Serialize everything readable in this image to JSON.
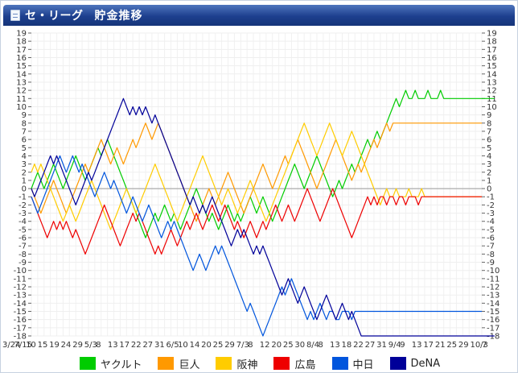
{
  "header": {
    "title": "セ・リーグ",
    "subtitle": "貯金推移"
  },
  "chart_data": {
    "type": "line",
    "ylim": [
      -18,
      19
    ],
    "y_ticks": [
      "19",
      "18",
      "17",
      "16",
      "15",
      "14",
      "13",
      "12",
      "11",
      "10",
      "9",
      "8",
      "7",
      "6",
      "5",
      "4",
      "3",
      "2",
      "1",
      "0",
      "-1",
      "-2",
      "-3",
      "-4",
      "-5",
      "-6",
      "-7",
      "-8",
      "-9",
      "-10",
      "-11",
      "-12",
      "-13",
      "-14",
      "-15",
      "-16",
      "-17",
      "-18"
    ],
    "x_tick_labels": [
      "3/24",
      "7/15",
      "10",
      "15",
      "19",
      "24",
      "29",
      "5/3",
      "8",
      "13",
      "17",
      "22",
      "27",
      "31",
      "6/5",
      "10",
      "14",
      "20",
      "25",
      "29",
      "7/3",
      "8",
      "12",
      "20",
      "25",
      "30",
      "8/4",
      "8",
      "13",
      "18",
      "22",
      "27",
      "31",
      "9/4",
      "9",
      "13",
      "17",
      "21",
      "25",
      "29",
      "10/3",
      "7"
    ],
    "x_count": 143,
    "zero_line": true,
    "grid": true,
    "series": [
      {
        "name": "ヤクルト",
        "color": "#00cc00",
        "values": [
          0,
          1,
          2,
          1,
          0,
          1,
          2,
          3,
          2,
          1,
          0,
          1,
          2,
          3,
          4,
          3,
          2,
          1,
          2,
          3,
          4,
          5,
          4,
          5,
          6,
          5,
          4,
          3,
          2,
          1,
          0,
          -1,
          -2,
          -3,
          -4,
          -5,
          -6,
          -5,
          -4,
          -3,
          -4,
          -3,
          -2,
          -3,
          -4,
          -3,
          -4,
          -5,
          -4,
          -3,
          -2,
          -1,
          0,
          -1,
          -2,
          -3,
          -4,
          -3,
          -4,
          -5,
          -4,
          -3,
          -2,
          -3,
          -4,
          -3,
          -4,
          -3,
          -2,
          -1,
          -2,
          -3,
          -2,
          -1,
          -2,
          -3,
          -4,
          -3,
          -2,
          -1,
          0,
          1,
          2,
          3,
          2,
          1,
          0,
          1,
          2,
          3,
          4,
          3,
          2,
          1,
          0,
          -1,
          0,
          1,
          0,
          1,
          2,
          3,
          2,
          3,
          4,
          5,
          6,
          5,
          6,
          7,
          6,
          7,
          8,
          9,
          10,
          11,
          10,
          11,
          12,
          11,
          11,
          12,
          11,
          11,
          11,
          12,
          11,
          11,
          11,
          12,
          11,
          11,
          11,
          11,
          11,
          11,
          11,
          11,
          11,
          11,
          11,
          11,
          11,
          11,
          11,
          11,
          11
        ]
      },
      {
        "name": "巨人",
        "color": "#ff9900",
        "values": [
          0,
          -1,
          -2,
          -3,
          -2,
          -1,
          0,
          1,
          0,
          -1,
          -2,
          -3,
          -2,
          -1,
          0,
          1,
          2,
          3,
          2,
          3,
          4,
          5,
          6,
          5,
          4,
          3,
          4,
          5,
          4,
          3,
          4,
          5,
          6,
          5,
          6,
          7,
          8,
          7,
          6,
          7,
          8,
          7,
          6,
          5,
          4,
          3,
          2,
          1,
          0,
          -1,
          -2,
          -3,
          -4,
          -3,
          -2,
          -1,
          0,
          -1,
          -2,
          -1,
          0,
          1,
          2,
          1,
          0,
          -1,
          -2,
          -3,
          -2,
          -1,
          0,
          1,
          2,
          3,
          2,
          1,
          0,
          1,
          2,
          3,
          4,
          3,
          4,
          5,
          6,
          5,
          4,
          3,
          2,
          1,
          0,
          1,
          2,
          3,
          4,
          5,
          6,
          5,
          4,
          3,
          2,
          1,
          2,
          3,
          2,
          3,
          4,
          5,
          6,
          5,
          6,
          7,
          8,
          7,
          8,
          8,
          8,
          8,
          8,
          8,
          8,
          8,
          8,
          8,
          8,
          8,
          8,
          8,
          8,
          8,
          8,
          8,
          8,
          8,
          8,
          8,
          8,
          8,
          8,
          8,
          8,
          8,
          8
        ]
      },
      {
        "name": "阪神",
        "color": "#ffcc00",
        "values": [
          2,
          3,
          2,
          3,
          2,
          1,
          0,
          -1,
          -2,
          -3,
          -4,
          -3,
          -2,
          -3,
          -4,
          -3,
          -2,
          -1,
          0,
          1,
          0,
          -1,
          -2,
          -3,
          -4,
          -5,
          -4,
          -3,
          -2,
          -1,
          0,
          -1,
          -2,
          -3,
          -2,
          -1,
          0,
          1,
          2,
          3,
          2,
          1,
          0,
          -1,
          -2,
          -3,
          -4,
          -3,
          -2,
          -1,
          0,
          1,
          2,
          3,
          4,
          3,
          2,
          1,
          0,
          -1,
          -2,
          -1,
          0,
          -1,
          -2,
          -3,
          -2,
          -1,
          0,
          1,
          0,
          -1,
          -2,
          -3,
          -4,
          -3,
          -2,
          -1,
          0,
          1,
          2,
          3,
          4,
          5,
          6,
          7,
          8,
          7,
          6,
          5,
          4,
          5,
          6,
          7,
          8,
          7,
          6,
          5,
          4,
          5,
          6,
          7,
          6,
          5,
          4,
          3,
          2,
          1,
          0,
          -1,
          -2,
          -1,
          0,
          -1,
          -1,
          0,
          -1,
          -1,
          -1,
          0,
          -1,
          -1,
          -1,
          0,
          -1,
          -1,
          -1,
          -1,
          -1,
          -1,
          -1,
          -1,
          -1,
          -1,
          -1,
          -1,
          -1,
          -1,
          -1,
          -1,
          -1,
          -1,
          -1
        ]
      },
      {
        "name": "広島",
        "color": "#ee0000",
        "values": [
          -1,
          -2,
          -3,
          -4,
          -5,
          -6,
          -5,
          -4,
          -5,
          -4,
          -5,
          -4,
          -5,
          -6,
          -5,
          -6,
          -7,
          -8,
          -7,
          -6,
          -5,
          -4,
          -3,
          -2,
          -3,
          -4,
          -5,
          -6,
          -7,
          -6,
          -5,
          -4,
          -3,
          -4,
          -3,
          -4,
          -5,
          -6,
          -7,
          -8,
          -7,
          -8,
          -7,
          -6,
          -5,
          -6,
          -7,
          -6,
          -5,
          -4,
          -5,
          -4,
          -3,
          -4,
          -5,
          -4,
          -3,
          -2,
          -3,
          -4,
          -3,
          -2,
          -3,
          -4,
          -5,
          -4,
          -5,
          -6,
          -5,
          -4,
          -5,
          -6,
          -5,
          -4,
          -5,
          -4,
          -3,
          -2,
          -3,
          -4,
          -3,
          -2,
          -3,
          -4,
          -3,
          -2,
          -1,
          0,
          -1,
          -2,
          -3,
          -4,
          -3,
          -2,
          -1,
          0,
          -1,
          -2,
          -3,
          -4,
          -5,
          -6,
          -5,
          -4,
          -3,
          -2,
          -1,
          -2,
          -1,
          -2,
          -1,
          -1,
          -2,
          -1,
          -1,
          -2,
          -1,
          -1,
          -2,
          -1,
          -1,
          -1,
          -2,
          -1,
          -1,
          -1,
          -1,
          -1,
          -1,
          -1,
          -1,
          -1,
          -1,
          -1,
          -1,
          -1,
          -1,
          -1,
          -1,
          -1,
          -1,
          -1,
          -1
        ]
      },
      {
        "name": "中日",
        "color": "#0055dd",
        "values": [
          -1,
          -2,
          -3,
          -2,
          -1,
          0,
          1,
          2,
          3,
          4,
          3,
          2,
          3,
          4,
          3,
          2,
          3,
          2,
          1,
          0,
          -1,
          0,
          1,
          2,
          1,
          0,
          1,
          0,
          -1,
          -2,
          -3,
          -2,
          -1,
          -2,
          -3,
          -4,
          -3,
          -2,
          -3,
          -4,
          -5,
          -6,
          -5,
          -4,
          -5,
          -4,
          -5,
          -6,
          -7,
          -8,
          -9,
          -10,
          -9,
          -8,
          -9,
          -10,
          -9,
          -8,
          -7,
          -8,
          -7,
          -8,
          -9,
          -10,
          -11,
          -12,
          -13,
          -14,
          -15,
          -14,
          -15,
          -16,
          -17,
          -18,
          -17,
          -16,
          -15,
          -14,
          -13,
          -12,
          -13,
          -12,
          -11,
          -12,
          -13,
          -14,
          -15,
          -16,
          -15,
          -16,
          -15,
          -14,
          -15,
          -16,
          -15,
          -15,
          -16,
          -16,
          -15,
          -15,
          -15,
          -16,
          -15,
          -15,
          -15,
          -15,
          -15,
          -15,
          -15,
          -15,
          -15,
          -15,
          -15,
          -15,
          -15,
          -15,
          -15,
          -15,
          -15,
          -15,
          -15,
          -15,
          -15,
          -15,
          -15,
          -15,
          -15,
          -15,
          -15,
          -15,
          -15,
          -15,
          -15,
          -15,
          -15,
          -15,
          -15,
          -15,
          -15,
          -15,
          -15,
          -15,
          -15
        ]
      },
      {
        "name": "DeNA",
        "color": "#000099",
        "values": [
          0,
          -1,
          0,
          1,
          2,
          3,
          4,
          3,
          4,
          3,
          2,
          1,
          0,
          -1,
          -2,
          -1,
          0,
          1,
          2,
          1,
          2,
          3,
          4,
          5,
          6,
          7,
          8,
          9,
          10,
          11,
          10,
          9,
          10,
          9,
          10,
          9,
          10,
          9,
          8,
          9,
          8,
          7,
          6,
          5,
          4,
          3,
          2,
          1,
          0,
          -1,
          -2,
          -1,
          -2,
          -3,
          -2,
          -3,
          -2,
          -1,
          -2,
          -3,
          -4,
          -5,
          -6,
          -7,
          -6,
          -5,
          -6,
          -5,
          -6,
          -7,
          -8,
          -7,
          -8,
          -7,
          -8,
          -9,
          -10,
          -11,
          -12,
          -13,
          -12,
          -11,
          -12,
          -13,
          -14,
          -13,
          -12,
          -13,
          -14,
          -15,
          -16,
          -15,
          -14,
          -13,
          -14,
          -15,
          -16,
          -15,
          -14,
          -15,
          -16,
          -15,
          -16,
          -17,
          -18,
          -18,
          -18,
          -18,
          -18,
          -18,
          -18,
          -18,
          -18,
          -18,
          -18,
          -18,
          -18,
          -18,
          -18,
          -18,
          -18,
          -18,
          -18,
          -18,
          -18,
          -18,
          -18,
          -18,
          -18,
          -18,
          -18,
          -18,
          -18,
          -18,
          -18,
          -18,
          -18,
          -18,
          -18,
          -18,
          -18,
          -18,
          -18,
          -18,
          -18,
          -18,
          -18
        ]
      }
    ]
  }
}
